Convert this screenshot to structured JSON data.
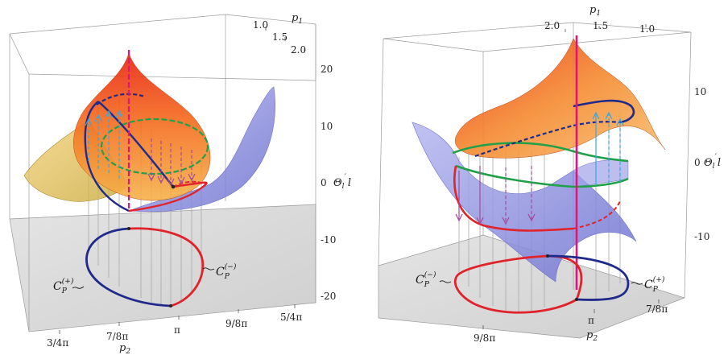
{
  "colors": {
    "blue_curve": "#1f2a8a",
    "red_curve": "#e0232a",
    "green_curve": "#21a04a",
    "magenta_axis": "#e0157a",
    "orange_surface": "#f06a1a",
    "lavender_surface": "#8c8fe0",
    "floor": "#d9d9d9"
  },
  "left_panel": {
    "p1_label": "p",
    "p1_sub": "1",
    "p1_ticks": [
      "1.0",
      "1.5",
      "2.0"
    ],
    "z_label": "Θ",
    "z_label_sub": "l",
    "z_label_prime": "′",
    "z_label_tail": "l",
    "z_ticks": [
      "20",
      "10",
      "0",
      "-10",
      "-20"
    ],
    "p2_label": "p",
    "p2_sub": "2",
    "p2_ticks": [
      "3/4π",
      "7/8π",
      "π",
      "9/8π",
      "5/4π"
    ],
    "curve_plus": {
      "base": "C",
      "sub": "P",
      "sup": "(+)"
    },
    "curve_minus": {
      "base": "C",
      "sub": "P",
      "sup": "(−)"
    }
  },
  "right_panel": {
    "p1_label": "p",
    "p1_sub": "1",
    "p1_ticks": [
      "2.0",
      "1.5",
      "1.0"
    ],
    "z_label": "Θ",
    "z_label_sub": "l",
    "z_label_prime": "′",
    "z_label_tail": "l",
    "z_ticks": [
      "10",
      "0",
      "-10"
    ],
    "p2_label": "p",
    "p2_sub": "2",
    "p2_ticks": [
      "9/8π",
      "π",
      "7/8π"
    ],
    "curve_plus": {
      "base": "C",
      "sub": "P",
      "sup": "(+)"
    },
    "curve_minus": {
      "base": "C",
      "sub": "P",
      "sup": "(−)"
    }
  }
}
